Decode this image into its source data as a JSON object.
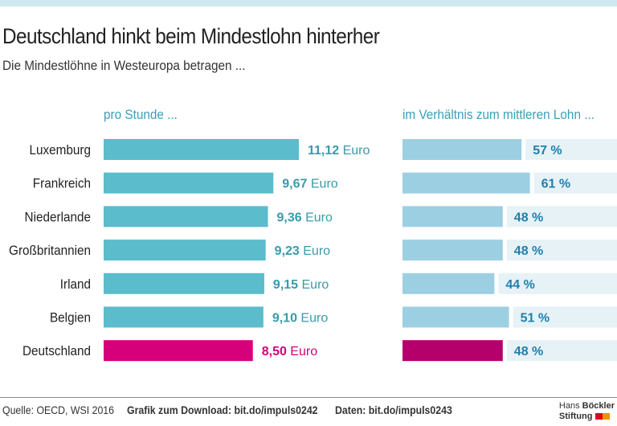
{
  "title": "Deutschland hinkt beim Mindestlohn hinterher",
  "subtitle": "Die Mindestlöhne in Westeuropa betragen ...",
  "footer": {
    "source": "Quelle: OECD, WSI 2016",
    "download": "Grafik zum Download: bit.do/impuls0242",
    "data": "Daten: bit.do/impuls0243",
    "logo_line1a": "Hans",
    "logo_line1b": "Böckler",
    "logo_line2": "Stiftung"
  },
  "colors": {
    "bar": "#5bbccb",
    "highlight": "#d6007b",
    "bar2": "#9dcfe2",
    "highlight2": "#b5006c",
    "track": "#e6f2f6",
    "label": "#3a9aab",
    "label2": "#1f7fae"
  },
  "chart_data": [
    {
      "type": "bar",
      "orientation": "horizontal",
      "title": "pro Stunde ...",
      "categories": [
        "Luxemburg",
        "Frankreich",
        "Niederlande",
        "Großbritannien",
        "Irland",
        "Belgien",
        "Deutschland"
      ],
      "values": [
        11.12,
        9.67,
        9.36,
        9.23,
        9.15,
        9.1,
        8.5
      ],
      "labels": [
        "11,12",
        "9,67",
        "9,36",
        "9,23",
        "9,15",
        "9,10",
        "8,50"
      ],
      "unit": "Euro",
      "highlight": "Deutschland"
    },
    {
      "type": "bar",
      "orientation": "horizontal",
      "title": "im Verhältnis zum mittleren Lohn ...",
      "categories": [
        "Luxemburg",
        "Frankreich",
        "Niederlande",
        "Großbritannien",
        "Irland",
        "Belgien",
        "Deutschland"
      ],
      "values": [
        57,
        61,
        48,
        48,
        44,
        51,
        48
      ],
      "unit": "%",
      "xlim": [
        0,
        100
      ],
      "highlight": "Deutschland"
    }
  ]
}
